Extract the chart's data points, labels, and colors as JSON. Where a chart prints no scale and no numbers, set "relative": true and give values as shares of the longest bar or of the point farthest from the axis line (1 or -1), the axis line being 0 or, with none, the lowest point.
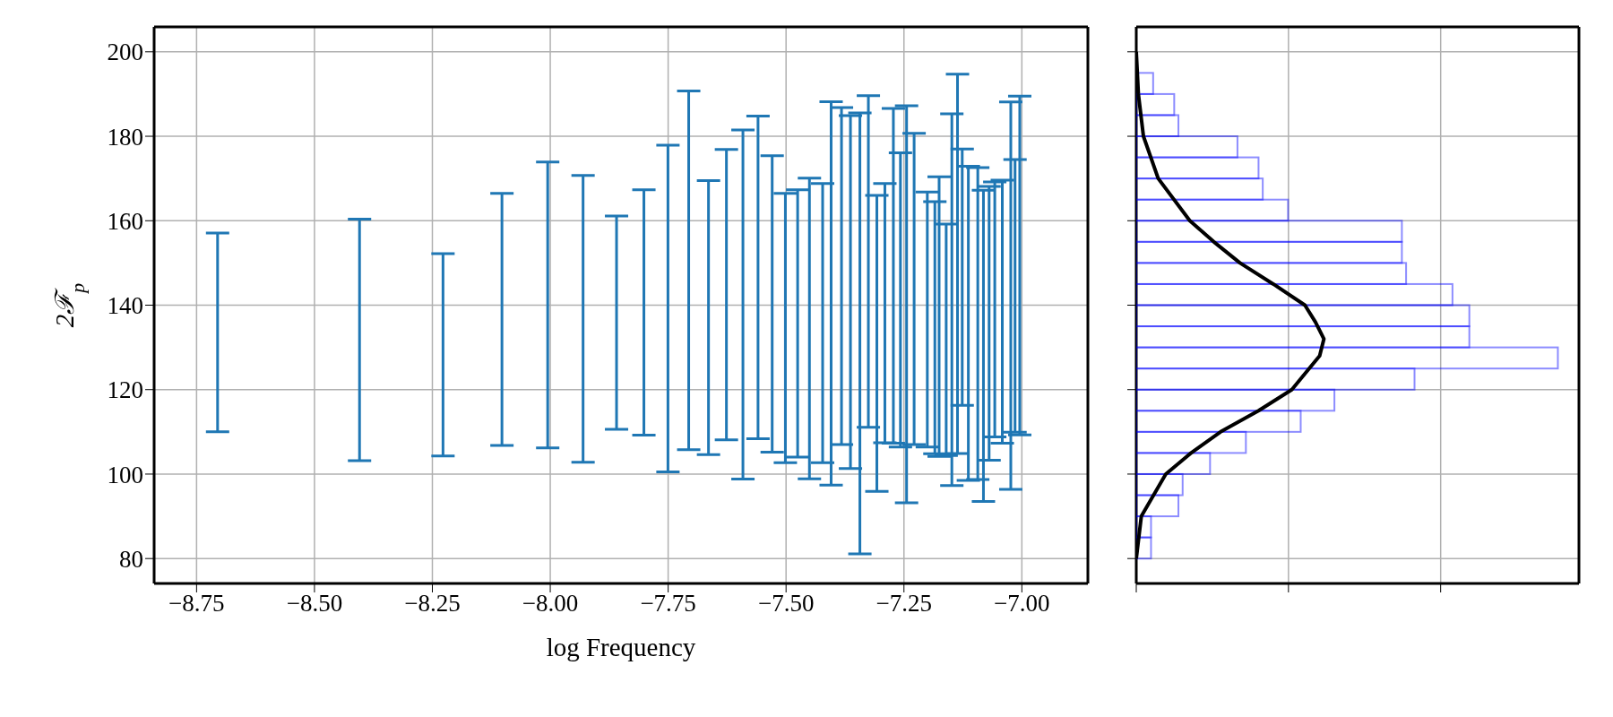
{
  "chart_data": [
    {
      "type": "bar",
      "color": "#1f77b4",
      "xlabel": "log Frequency",
      "ylabel": "2ℱ$_{p}$",
      "grid": true,
      "x": [
        -8.705,
        -8.404,
        -8.227,
        -8.102,
        -8.005,
        -7.93,
        -7.859,
        -7.801,
        -7.75,
        -7.706,
        -7.664,
        -7.626,
        -7.591,
        -7.559,
        -7.529,
        -7.501,
        -7.475,
        -7.45,
        -7.422,
        -7.404,
        -7.382,
        -7.363,
        -7.343,
        -7.325,
        -7.307,
        -7.29,
        -7.272,
        -7.257,
        -7.244,
        -7.228,
        -7.2,
        -7.184,
        -7.175,
        -7.16,
        -7.148,
        -7.136,
        -7.126,
        -7.113,
        -7.093,
        -7.081,
        -7.069,
        -7.057,
        -7.041,
        -7.023,
        -7.014,
        -7.004
      ],
      "base": [
        110.0,
        103.2,
        104.3,
        106.8,
        106.2,
        102.8,
        110.6,
        109.2,
        100.5,
        105.8,
        104.6,
        108.1,
        98.8,
        108.4,
        105.2,
        102.7,
        104.0,
        98.9,
        102.7,
        97.4,
        107.0,
        101.3,
        81.1,
        111.1,
        95.9,
        107.4,
        107.3,
        106.4,
        93.2,
        107.0,
        106.4,
        104.8,
        104.2,
        104.4,
        97.3,
        104.9,
        116.3,
        98.5,
        98.7,
        93.5,
        103.3,
        108.8,
        107.3,
        96.4,
        109.9,
        109.3
      ],
      "values": [
        47.1,
        57.2,
        47.9,
        59.7,
        67.7,
        67.9,
        50.5,
        58.1,
        77.4,
        84.9,
        64.9,
        68.8,
        82.7,
        76.4,
        70.2,
        63.8,
        63.3,
        71.2,
        66.1,
        90.8,
        79.8,
        83.6,
        104.4,
        78.5,
        70.1,
        61.4,
        79.3,
        69.7,
        94.0,
        73.7,
        60.4,
        59.7,
        66.2,
        54.8,
        88.0,
        89.8,
        60.7,
        74.4,
        73.9,
        73.7,
        64.8,
        60.4,
        62.3,
        91.7,
        64.6,
        80.2
      ],
      "xlim": [
        -8.84,
        -6.86
      ],
      "xticks": [
        {
          "value": -8.75,
          "label": "−8.75"
        },
        {
          "value": -8.5,
          "label": "−8.50"
        },
        {
          "value": -8.25,
          "label": "−8.25"
        },
        {
          "value": -8.0,
          "label": "−8.00"
        },
        {
          "value": -7.75,
          "label": "−7.75"
        },
        {
          "value": -7.5,
          "label": "−7.50"
        },
        {
          "value": -7.25,
          "label": "−7.25"
        },
        {
          "value": -7.0,
          "label": "−7.00"
        }
      ],
      "ylim": [
        74.1,
        205.9
      ],
      "yticks": [
        80,
        100,
        120,
        140,
        160,
        180,
        200
      ]
    },
    {
      "type": "histogram",
      "orientation": "horizontal",
      "relative": true,
      "grid": true,
      "tick_labels": false,
      "ylim": [
        74.1,
        205.9
      ],
      "yticks": [
        80,
        100,
        120,
        140,
        160,
        180,
        200
      ],
      "series": [
        {
          "type": "histogram",
          "color": "#0000ff",
          "bins": [
            80,
            85,
            90,
            95,
            100,
            105,
            110,
            115,
            120,
            125,
            130,
            135,
            140,
            145,
            150,
            155,
            160,
            165,
            170,
            175,
            180,
            185,
            190,
            195,
            200
          ],
          "values": [
            0.035,
            0.035,
            0.1,
            0.11,
            0.175,
            0.26,
            0.39,
            0.47,
            0.66,
            1.0,
            0.79,
            0.79,
            0.75,
            0.64,
            0.63,
            0.63,
            0.36,
            0.3,
            0.29,
            0.24,
            0.1,
            0.09,
            0.04,
            0
          ]
        },
        {
          "type": "line",
          "color": "#000000",
          "x": [
            80,
            90,
            100,
            105,
            110,
            115,
            120,
            125,
            128,
            132,
            136,
            140,
            145,
            150,
            155,
            160,
            170,
            180,
            190,
            200
          ],
          "values": [
            0,
            0.012,
            0.07,
            0.13,
            0.2,
            0.29,
            0.369,
            0.41,
            0.435,
            0.445,
            0.425,
            0.4,
            0.325,
            0.246,
            0.184,
            0.127,
            0.052,
            0.017,
            0.005,
            0
          ]
        }
      ]
    }
  ]
}
